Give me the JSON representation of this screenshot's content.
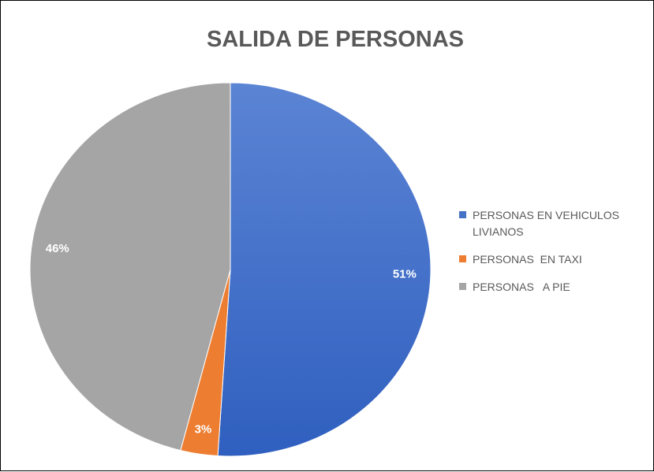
{
  "chart_data": {
    "type": "pie",
    "title": "SALIDA DE PERSONAS",
    "categories": [
      "PERSONAS EN VEHICULOS LIVIANOS",
      "PERSONAS  EN TAXI",
      "PERSONAS   A PIE"
    ],
    "values": [
      51,
      3,
      46
    ],
    "value_labels": [
      "51%",
      "3%",
      "46%"
    ],
    "colors": [
      "#4472c4",
      "#ed7d31",
      "#a5a5a5"
    ],
    "legend": "right"
  }
}
